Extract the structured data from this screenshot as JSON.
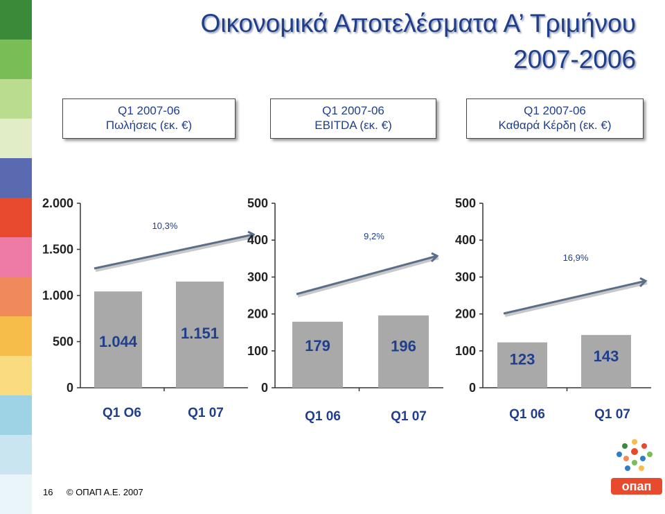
{
  "title_line1": "Οικονομικά Αποτελέσματα Α’ Τριμήνου",
  "title_line2": "2007-2006",
  "boxes": [
    {
      "line1": "Q1 2007-06",
      "line2": "Πωλήσεις (εκ. €)"
    },
    {
      "line1": "Q1 2007-06",
      "line2": "EBITDA (εκ. €)"
    },
    {
      "line1": "Q1 2007-06",
      "line2": "Καθαρά Κέρδη (εκ. €)"
    }
  ],
  "colors": {
    "bar": "#a9a9a9",
    "title": "#1f3f8c",
    "axis": "#333333"
  },
  "chart_data": [
    {
      "type": "bar",
      "categories": [
        "Q1 O6",
        "Q1 07"
      ],
      "values": [
        1044,
        1151
      ],
      "value_labels": [
        "1.044",
        "1.151"
      ],
      "ylim": [
        0,
        2000
      ],
      "yticks": [
        0,
        500,
        1000,
        1500,
        2000
      ],
      "ytick_labels": [
        "0",
        "500",
        "1.000",
        "1.500",
        "2.000"
      ],
      "growth_label": "10,3%"
    },
    {
      "type": "bar",
      "categories": [
        "Q1 06",
        "Q1 07"
      ],
      "values": [
        179,
        196
      ],
      "value_labels": [
        "179",
        "196"
      ],
      "ylim": [
        0,
        500
      ],
      "yticks": [
        0,
        100,
        200,
        300,
        400,
        500
      ],
      "ytick_labels": [
        "0",
        "100",
        "200",
        "300",
        "400",
        "500"
      ],
      "growth_label": "9,2%"
    },
    {
      "type": "bar",
      "categories": [
        "Q1 06",
        "Q1 07"
      ],
      "values": [
        123,
        143
      ],
      "value_labels": [
        "123",
        "143"
      ],
      "ylim": [
        0,
        500
      ],
      "yticks": [
        0,
        100,
        200,
        300,
        400,
        500
      ],
      "ytick_labels": [
        "0",
        "100",
        "200",
        "300",
        "400",
        "500"
      ],
      "growth_label": "16,9%"
    }
  ],
  "footer": {
    "page_number": "16",
    "copyright": "© ΟΠΑΠ Α.Ε. 2007"
  },
  "logo_text": "опап"
}
